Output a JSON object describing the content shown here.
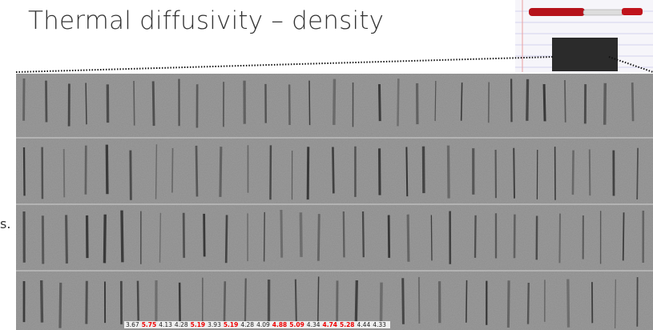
{
  "header": {
    "title": "Thermal diffusivity – density"
  },
  "side_text": "s.",
  "values": [
    {
      "text": "3.67",
      "highlight": false
    },
    {
      "text": "5.75",
      "highlight": true
    },
    {
      "text": "4.13",
      "highlight": false
    },
    {
      "text": "4.28",
      "highlight": false
    },
    {
      "text": "5.19",
      "highlight": true
    },
    {
      "text": "3.93",
      "highlight": false
    },
    {
      "text": "5.19",
      "highlight": true
    },
    {
      "text": "4.28",
      "highlight": false
    },
    {
      "text": "4.09",
      "highlight": false
    },
    {
      "text": "4.88",
      "highlight": true
    },
    {
      "text": "5.09",
      "highlight": true
    },
    {
      "text": "4.34",
      "highlight": false
    },
    {
      "text": "4.74",
      "highlight": true
    },
    {
      "text": "5.28",
      "highlight": true
    },
    {
      "text": "4.44",
      "highlight": false
    },
    {
      "text": "4.33",
      "highlight": false
    }
  ]
}
